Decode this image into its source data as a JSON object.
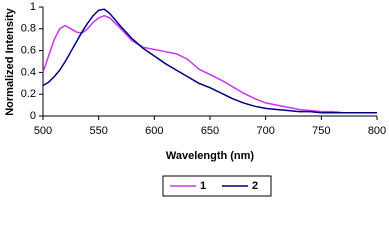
{
  "chart_data": {
    "type": "line",
    "x_label": "Wavelength (nm)",
    "y_label": "Normalized Intensity",
    "x": [
      500,
      505,
      510,
      515,
      520,
      525,
      530,
      535,
      540,
      545,
      550,
      555,
      560,
      570,
      580,
      590,
      600,
      610,
      620,
      630,
      640,
      650,
      660,
      670,
      680,
      690,
      700,
      710,
      720,
      730,
      740,
      750,
      760,
      770,
      780,
      790,
      800
    ],
    "series": [
      {
        "name": "1",
        "color": "#cc33ff",
        "values": [
          0.4,
          0.55,
          0.7,
          0.8,
          0.83,
          0.8,
          0.77,
          0.76,
          0.8,
          0.86,
          0.9,
          0.92,
          0.9,
          0.8,
          0.69,
          0.63,
          0.61,
          0.59,
          0.57,
          0.52,
          0.43,
          0.38,
          0.33,
          0.27,
          0.21,
          0.16,
          0.12,
          0.1,
          0.08,
          0.06,
          0.05,
          0.04,
          0.04,
          0.03,
          0.03,
          0.03,
          0.03
        ]
      },
      {
        "name": "2",
        "color": "#000080",
        "values": [
          0.28,
          0.31,
          0.36,
          0.42,
          0.5,
          0.59,
          0.68,
          0.77,
          0.85,
          0.92,
          0.97,
          0.98,
          0.94,
          0.82,
          0.71,
          0.62,
          0.55,
          0.48,
          0.42,
          0.36,
          0.3,
          0.26,
          0.21,
          0.16,
          0.12,
          0.09,
          0.07,
          0.06,
          0.05,
          0.04,
          0.04,
          0.03,
          0.03,
          0.03,
          0.03,
          0.03,
          0.03
        ]
      }
    ],
    "xlim": [
      500,
      800
    ],
    "xticks": [
      500,
      550,
      600,
      650,
      700,
      750,
      800
    ],
    "ylim": [
      0,
      1
    ],
    "yticks": [
      0,
      0.2,
      0.4,
      0.6,
      0.8,
      1
    ]
  }
}
